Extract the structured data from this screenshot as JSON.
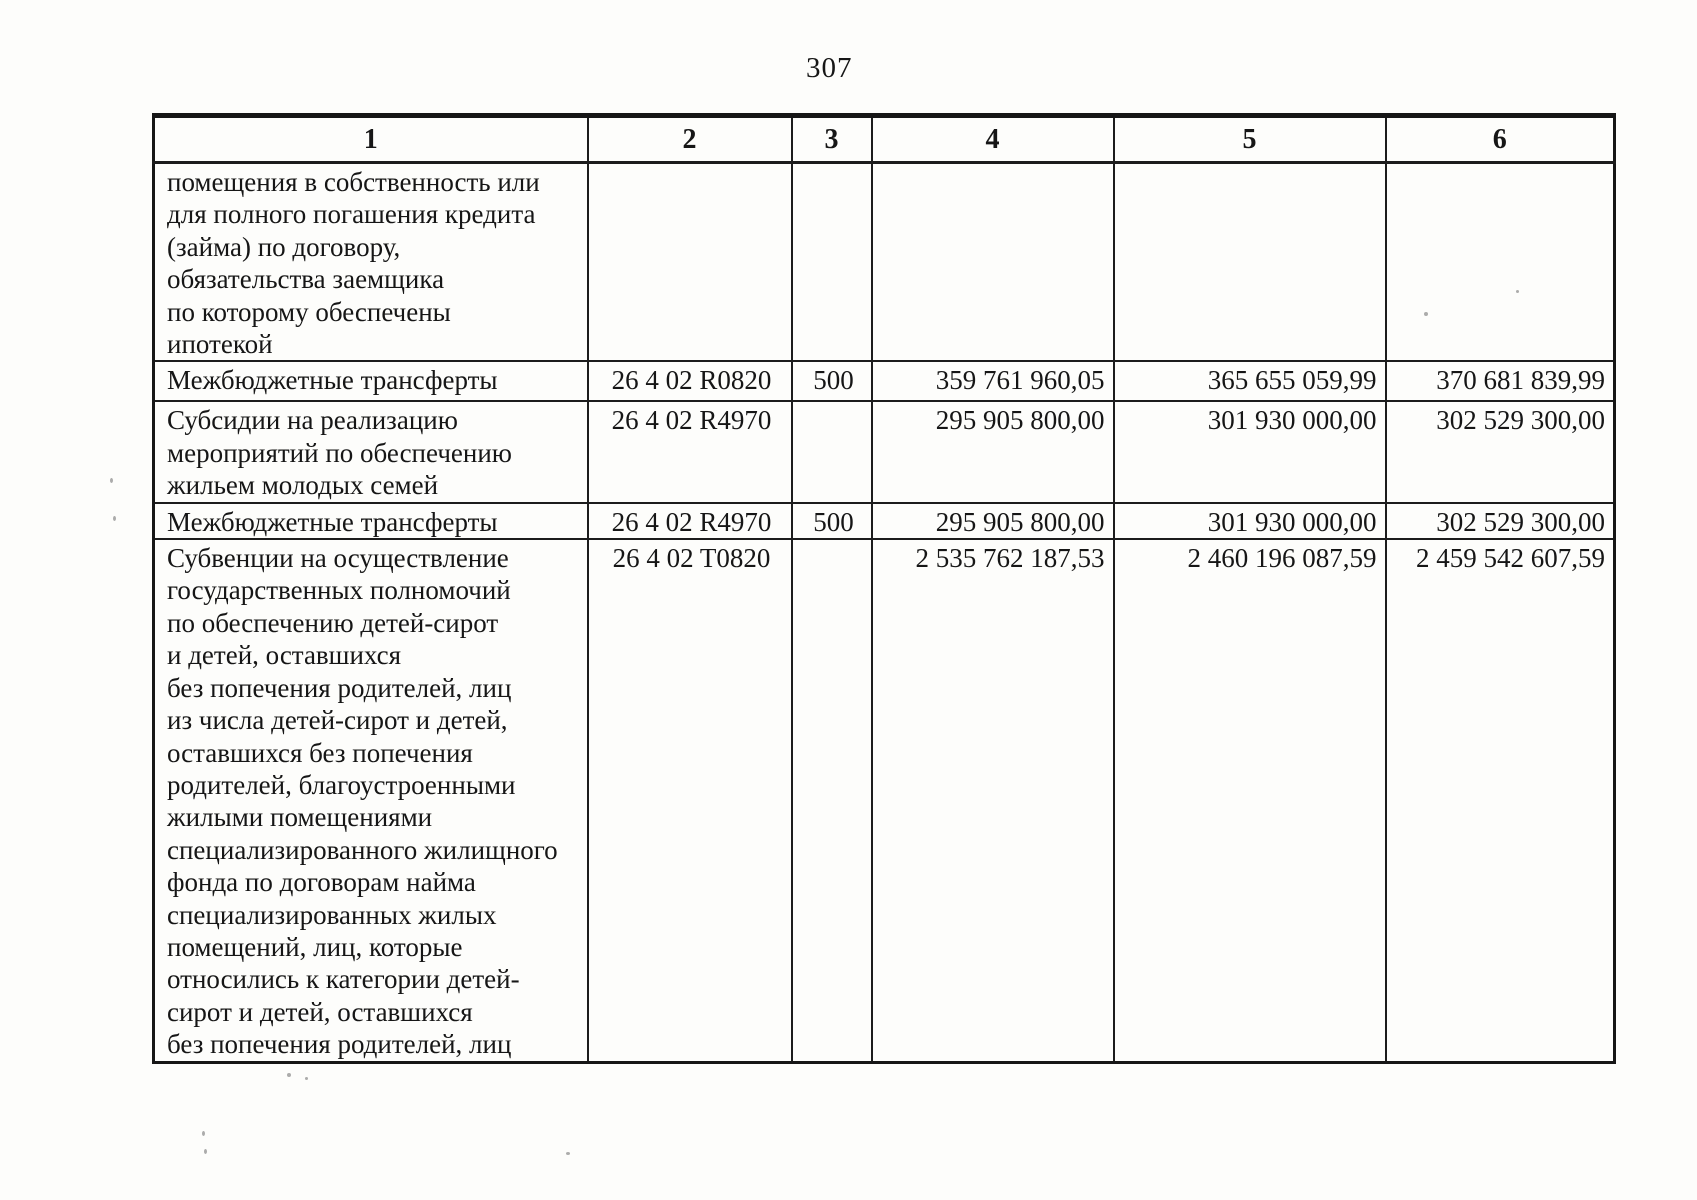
{
  "page": {
    "number": "307"
  },
  "table": {
    "header": [
      "1",
      "2",
      "3",
      "4",
      "5",
      "6"
    ],
    "rows": [
      {
        "cells": [
          "помещения в собственность или\nдля полного погашения кредита\n(займа) по договору,\nобязательства заемщика\nпо которому обеспечены\nипотекой",
          "",
          "",
          "",
          "",
          ""
        ]
      },
      {
        "cells": [
          "Межбюджетные трансферты",
          "26 4 02 R0820",
          "500",
          "359 761 960,05",
          "365 655 059,99",
          "370 681 839,99"
        ]
      },
      {
        "cells": [
          "Субсидии на реализацию\nмероприятий по обеспечению\nжильем молодых семей",
          "26 4 02 R4970",
          "",
          "295 905 800,00",
          "301 930 000,00",
          "302 529 300,00"
        ]
      },
      {
        "cells": [
          "Межбюджетные трансферты",
          "26 4 02 R4970",
          "500",
          "295 905 800,00",
          "301 930 000,00",
          "302 529 300,00"
        ]
      },
      {
        "cells": [
          "Субвенции на осуществление\nгосударственных полномочий\nпо обеспечению детей-сирот\nи детей, оставшихся\nбез попечения родителей, лиц\nиз числа детей-сирот и детей,\nоставшихся без попечения\nродителей, благоустроенными\nжилыми помещениями\nспециализированного жилищного\nфонда по договорам найма\nспециализированных жилых\nпомещений, лиц, которые\nотносились к категории детей-\nсирот и детей, оставшихся\nбез попечения родителей, лиц",
          "26 4 02 T0820",
          "",
          "2 535 762 187,53",
          "2 460 196 087,59",
          "2 459 542 607,59"
        ]
      }
    ]
  }
}
